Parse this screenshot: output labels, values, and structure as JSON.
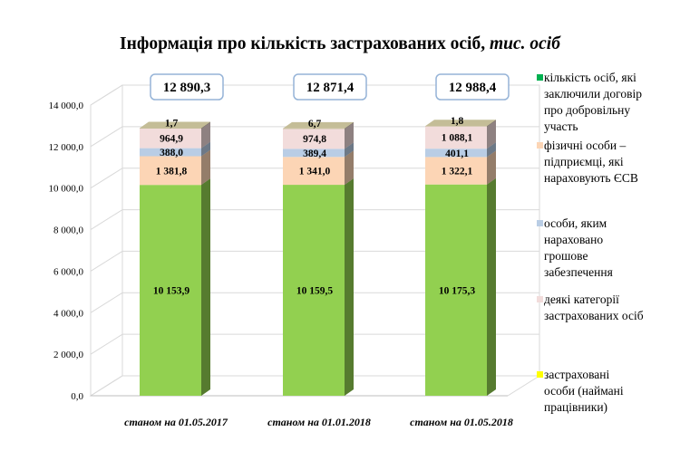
{
  "title": {
    "main": "Інформація про кількість застрахованих осіб,",
    "unit": "тис. осіб"
  },
  "colors": {
    "series": [
      "#92d050",
      "#fcd5b5",
      "#b9cde5",
      "#f2dcdb",
      "#c4bd97"
    ],
    "legend_swatches": [
      "#00b050",
      "#fcd5b5",
      "#b9cde5",
      "#f2dcdb",
      "#ffff00"
    ],
    "wall": "#d9d9d9",
    "callout_border": "#95b3d7"
  },
  "chart_data": {
    "type": "bar",
    "stacked": true,
    "three_d": true,
    "categories": [
      "станом на 01.05.2017",
      "станом на 01.01.2018",
      "станом на 01.05.2018"
    ],
    "series": [
      {
        "name": "застраховані особи (наймані працівники)",
        "values": [
          10153.9,
          10159.5,
          10175.3
        ],
        "labels": [
          "10 153,9",
          "10 159,5",
          "10 175,3"
        ]
      },
      {
        "name": "деякі категорії застрахованих  осіб",
        "values": [
          1381.8,
          1341.0,
          1322.1
        ],
        "labels": [
          "1 381,8",
          "1 341,0",
          "1 322,1"
        ]
      },
      {
        "name": "особи, яким нараховано грошове забезпечення",
        "values": [
          388.0,
          389.4,
          401.1
        ],
        "labels": [
          "388,0",
          "389,4",
          "401,1"
        ]
      },
      {
        "name": "фізичні особи – підприємці, які нараховують  ЄСВ",
        "values": [
          964.9,
          974.8,
          1088.1
        ],
        "labels": [
          "964,9",
          "974,8",
          "1 088,1"
        ]
      },
      {
        "name": "кількість осіб, які заключили договір про добровільну участь",
        "values": [
          1.7,
          6.7,
          1.8
        ],
        "labels": [
          "1,7",
          "6,7",
          "1,8"
        ]
      }
    ],
    "totals": [
      "12 890,3",
      "12 871,4",
      "12 988,4"
    ],
    "ylim": [
      0,
      14000
    ],
    "yticks": [
      0,
      2000,
      4000,
      6000,
      8000,
      10000,
      12000,
      14000
    ],
    "ytick_labels": [
      "0,0",
      "2 000,0",
      "4 000,0",
      "6 000,0",
      "8 000,0",
      "10 000,0",
      "12 000,0",
      "14 000,0"
    ],
    "legend_position": "right",
    "legend_lines": [
      [
        "кількість осіб, які",
        "заключили договір",
        "про добровільну",
        "участь"
      ],
      [
        "фізичні особи –",
        "підприємці, які",
        "нараховують  ЄСВ"
      ],
      [
        "особи, яким",
        "нараховано",
        "грошове",
        "забезпечення"
      ],
      [
        "деякі категорії",
        "застрахованих  осіб"
      ],
      [
        "застраховані",
        "особи (наймані",
        "працівники)"
      ]
    ]
  }
}
